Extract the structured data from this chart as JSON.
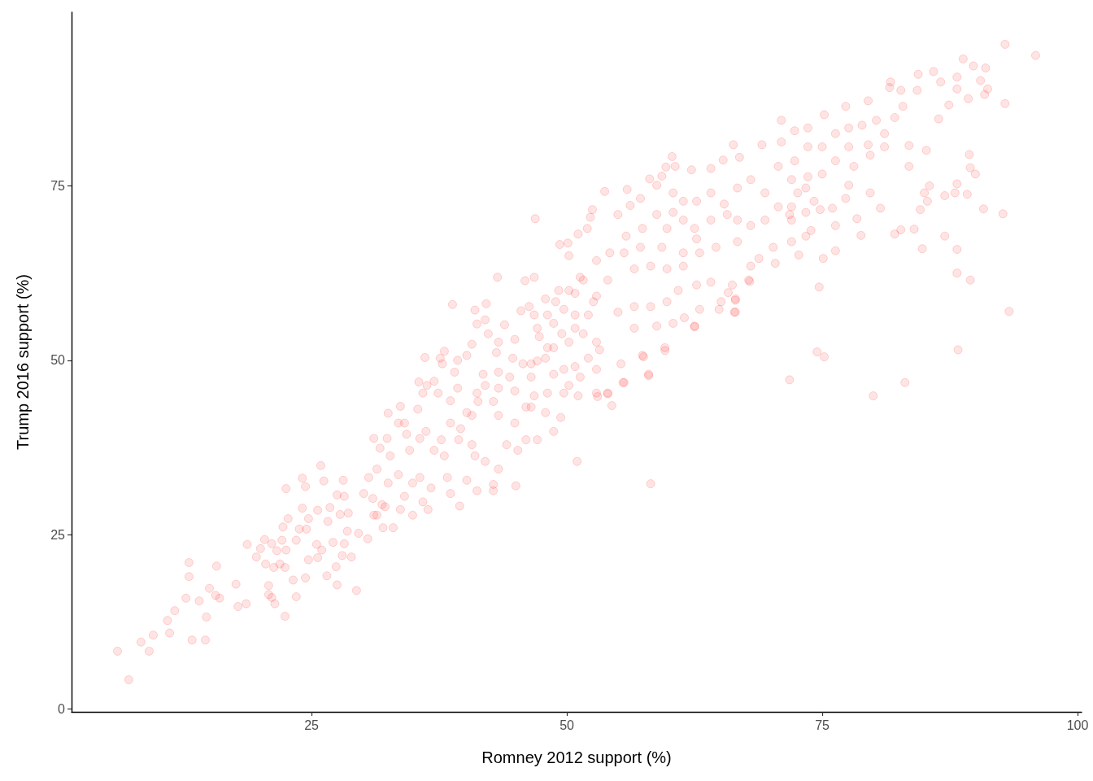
{
  "chart_data": {
    "type": "scatter",
    "xlabel": "Romney 2012 support (%)",
    "ylabel": "Trump 2016 support (%)",
    "xlim": [
      1.5,
      100.4
    ],
    "ylim": [
      -0.4,
      99.9
    ],
    "xticks": [
      25,
      50,
      75,
      100
    ],
    "yticks": [
      0,
      25,
      50,
      75
    ],
    "marker": "circle",
    "series": [
      {
        "color": "#ff0000",
        "x": [
          6.0,
          7.1,
          8.3,
          9.1,
          9.5,
          10.9,
          11.1,
          11.6,
          12.7,
          13.0,
          13.0,
          13.3,
          14.0,
          14.6,
          14.7,
          15.0,
          15.7,
          15.6,
          16.0,
          17.6,
          17.8,
          18.6,
          18.7,
          19.6,
          20.0,
          20.4,
          20.5,
          20.8,
          20.8,
          21.1,
          21.4,
          21.1,
          21.3,
          21.6,
          21.9,
          22.4,
          22.4,
          22.1,
          22.2,
          22.5,
          22.5,
          22.7,
          23.2,
          23.5,
          23.5,
          23.8,
          24.1,
          24.1,
          24.4,
          24.4,
          24.7,
          24.7,
          24.5,
          25.5,
          25.6,
          25.6,
          25.9,
          26.0,
          26.2,
          26.5,
          26.6,
          26.8,
          27.1,
          27.5,
          27.4,
          27.8,
          28.0,
          28.1,
          28.5,
          28.2,
          28.9,
          28.6,
          29.4,
          29.6,
          30.5,
          30.1,
          31.0,
          32.0,
          33.0,
          33.7,
          31.4,
          32.2,
          31.1,
          32.5,
          33.7,
          32.4,
          31.7,
          33.5,
          35.4,
          35.5,
          36.1,
          37.6,
          38.0,
          37.8,
          38.8,
          37.0,
          36.3,
          35.9,
          37.4,
          38.6,
          39.3,
          39.0,
          40.2,
          39.3,
          40.7,
          41.0,
          41.2,
          42.1,
          43.2,
          42.0,
          40.7,
          41.3,
          40.2,
          39.6,
          39.4,
          38.6,
          37.7,
          38.0,
          37.0,
          36.2,
          35.6,
          34.6,
          34.3,
          34.1,
          32.7,
          31.4,
          30.6,
          28.2,
          35.6,
          34.9,
          36.7,
          38.3,
          39.5,
          38.6,
          40.2,
          41.2,
          42.8,
          42.8,
          45.0,
          43.3,
          42.0,
          41.0,
          40.7,
          44.1,
          45.2,
          46.0,
          47.1,
          48.7,
          49.4,
          47.9,
          46.5,
          44.9,
          43.3,
          42.8,
          41.2,
          42.0,
          43.3,
          44.9,
          46.0,
          46.8,
          48.1,
          49.7,
          51.0,
          50.2,
          51.1,
          51.3,
          52.9,
          52.9,
          52.1,
          50.8,
          49.7,
          48.7,
          47.9,
          46.5,
          45.7,
          44.4,
          43.3,
          41.8,
          43.1,
          44.7,
          44.9,
          43.3,
          42.3,
          43.9,
          45.5,
          46.8,
          46.8,
          45.9,
          47.9,
          48.7,
          47.3,
          48.7,
          50.2,
          50.8,
          49.7,
          50.8,
          52.1,
          52.9,
          52.9,
          49.2,
          51.3,
          27.5,
          32.5,
          33.5,
          34.1,
          35.9,
          36.4,
          34.9,
          31.9,
          31.1,
          46.9,
          49.3,
          50.1,
          50.2,
          51.1,
          52.0,
          52.5,
          52.3,
          53.7,
          55.9,
          55.0,
          56.2,
          58.1,
          59.3,
          59.7,
          60.3,
          60.6,
          58.8,
          57.2,
          62.2,
          64.1,
          65.3,
          66.3,
          66.9,
          69.1,
          71.0,
          73.6,
          64.1,
          65.7,
          62.7,
          61.4,
          59.8,
          58.8,
          57.4,
          55.8,
          54.2,
          52.9,
          51.6,
          50.2,
          48.9,
          48.1,
          47.1,
          46.3,
          54.0,
          52.6,
          50.8,
          49.5,
          48.1,
          47.1,
          46.5,
          51.6,
          53.2,
          55.3,
          58.0,
          55.6,
          54.0,
          59.6,
          57.4,
          56.6,
          58.8,
          60.4,
          62.5,
          61.5,
          63.0,
          64.9,
          66.5,
          65.1,
          66.5,
          66.2,
          67.8,
          68.0,
          68.8,
          70.4,
          70.2,
          72.0,
          73.4,
          72.7,
          71.8,
          64.1,
          62.7,
          60.9,
          59.8,
          58.2,
          56.6,
          55.0,
          61.4,
          59.8,
          58.2,
          56.6,
          55.6,
          57.2,
          59.3,
          61.4,
          63.0,
          64.6,
          66.7,
          68.0,
          66.7,
          69.4,
          70.7,
          72.0,
          73.4,
          72.0,
          69.4,
          70.7,
          68.0,
          66.7,
          65.4,
          62.7,
          61.4,
          60.4,
          64.1,
          62.5,
          60.4,
          72.0,
          73.4,
          92.9,
          95.9,
          92.9,
          91.0,
          88.8,
          89.8,
          91.2,
          90.9,
          89.3,
          88.2,
          87.4,
          85.9,
          84.4,
          81.7,
          82.7,
          86.4,
          83.5,
          85.2,
          83.5,
          89.4,
          89.5,
          90.0,
          88.2,
          88.0,
          89.2,
          87.0,
          85.5,
          85.0,
          85.3,
          84.6,
          80.7,
          90.8,
          92.7,
          84.0,
          82.7,
          82.1,
          87.0,
          78.8,
          84.8,
          88.2,
          88.2,
          89.5,
          76.3,
          75.1,
          74.7,
          78.4,
          79.7,
          76.0,
          73.9,
          74.8,
          75.2,
          77.3,
          79.5,
          81.6,
          84.3,
          86.6,
          88.2,
          72.3,
          73.6,
          71.0,
          72.3,
          75.0,
          76.3,
          77.6,
          78.9,
          80.3,
          82.1,
          82.9,
          81.1,
          79.5,
          77.6,
          76.3,
          75.0,
          73.6,
          78.1,
          79.7,
          81.1,
          77.6,
          77.3,
          74.2,
          72.6,
          71.8,
          76.3,
          93.3,
          74.5,
          75.2,
          88.3,
          83.1,
          80.0,
          58.2,
          58.0,
          62.5,
          66.4,
          66.5,
          67.9,
          65.8,
          59.6,
          57.5,
          55.5,
          54.4,
          54.0,
          53.0,
          90.5
        ],
        "values": [
          8.3,
          4.2,
          9.6,
          8.3,
          10.6,
          12.7,
          10.9,
          14.1,
          15.9,
          19.0,
          21.0,
          9.9,
          15.5,
          9.9,
          13.2,
          17.3,
          20.5,
          16.3,
          15.9,
          17.9,
          14.7,
          15.1,
          23.6,
          21.8,
          23.0,
          24.3,
          20.8,
          17.7,
          16.4,
          16.0,
          15.1,
          23.7,
          20.3,
          22.7,
          20.8,
          20.3,
          13.3,
          24.2,
          26.1,
          31.6,
          22.8,
          27.3,
          18.5,
          24.2,
          16.1,
          25.8,
          33.1,
          28.8,
          31.9,
          18.8,
          21.4,
          27.3,
          25.8,
          23.6,
          21.7,
          28.5,
          34.9,
          22.8,
          32.7,
          19.1,
          26.9,
          28.9,
          23.9,
          17.8,
          20.4,
          27.9,
          22.0,
          32.8,
          25.5,
          23.7,
          21.8,
          28.1,
          17.0,
          25.2,
          24.4,
          30.9,
          30.2,
          26.0,
          26.0,
          28.6,
          27.8,
          29.0,
          38.8,
          42.4,
          43.4,
          38.8,
          37.4,
          41.0,
          43.0,
          46.9,
          50.4,
          50.3,
          51.3,
          49.5,
          58.0,
          47.0,
          46.4,
          45.3,
          45.3,
          44.2,
          46.0,
          48.3,
          50.7,
          50.0,
          52.3,
          57.2,
          55.2,
          58.1,
          61.9,
          55.8,
          42.1,
          44.1,
          42.5,
          40.2,
          38.6,
          41.0,
          38.6,
          36.3,
          37.1,
          39.8,
          38.8,
          37.1,
          39.4,
          41.0,
          36.3,
          34.4,
          33.2,
          30.5,
          33.2,
          32.4,
          31.7,
          33.2,
          29.1,
          30.9,
          32.8,
          31.3,
          32.2,
          31.3,
          32.0,
          34.4,
          35.5,
          36.3,
          37.9,
          37.9,
          37.1,
          38.6,
          38.6,
          39.8,
          41.8,
          42.5,
          43.3,
          41.0,
          42.1,
          44.1,
          45.3,
          46.4,
          46.0,
          45.6,
          43.3,
          44.9,
          45.3,
          45.3,
          35.5,
          46.4,
          44.9,
          47.6,
          45.3,
          48.7,
          50.3,
          49.1,
          48.7,
          48.0,
          50.3,
          49.5,
          49.5,
          47.6,
          48.3,
          48.0,
          51.1,
          50.3,
          53.0,
          52.6,
          53.8,
          55.1,
          57.1,
          56.5,
          61.9,
          61.4,
          58.8,
          55.3,
          53.4,
          51.8,
          52.6,
          54.6,
          57.3,
          59.6,
          56.5,
          52.6,
          59.2,
          60.0,
          61.9,
          30.7,
          32.4,
          33.6,
          30.5,
          29.7,
          28.6,
          27.8,
          29.3,
          27.8,
          70.3,
          66.6,
          66.8,
          65.0,
          68.1,
          68.9,
          71.6,
          70.5,
          74.2,
          74.5,
          70.9,
          72.2,
          76.0,
          76.4,
          77.7,
          79.2,
          77.8,
          75.1,
          73.2,
          77.3,
          77.5,
          78.7,
          80.9,
          79.1,
          80.9,
          81.3,
          80.6,
          74.0,
          70.9,
          67.4,
          70.1,
          68.9,
          70.9,
          68.9,
          67.8,
          65.4,
          64.3,
          61.5,
          60.0,
          58.4,
          56.5,
          54.6,
          57.7,
          61.5,
          58.4,
          56.5,
          53.8,
          51.8,
          49.9,
          47.6,
          53.8,
          51.5,
          49.5,
          48.0,
          46.8,
          45.3,
          51.8,
          50.7,
          54.6,
          54.9,
          55.3,
          54.9,
          56.1,
          57.3,
          57.3,
          56.9,
          58.4,
          58.8,
          60.8,
          61.5,
          63.5,
          64.6,
          63.9,
          66.2,
          67.0,
          67.8,
          65.1,
          47.2,
          61.2,
          60.8,
          60.0,
          58.4,
          57.7,
          57.7,
          56.9,
          63.5,
          63.1,
          63.5,
          63.1,
          65.4,
          66.2,
          66.2,
          65.4,
          65.4,
          66.2,
          67.0,
          69.3,
          70.1,
          70.1,
          72.0,
          72.0,
          74.7,
          75.9,
          74.0,
          77.8,
          75.9,
          74.7,
          72.4,
          72.8,
          72.8,
          71.2,
          70.1,
          68.9,
          74.0,
          70.1,
          71.2,
          95.3,
          93.7,
          86.8,
          91.9,
          93.2,
          92.2,
          88.9,
          88.1,
          87.5,
          88.9,
          86.6,
          91.4,
          91.0,
          89.9,
          88.7,
          84.6,
          80.8,
          80.1,
          77.8,
          79.5,
          77.6,
          76.7,
          75.3,
          74.0,
          73.8,
          73.6,
          75.0,
          74.0,
          72.8,
          71.6,
          71.8,
          71.7,
          71.0,
          68.8,
          68.7,
          68.1,
          67.8,
          67.9,
          66.0,
          65.9,
          62.5,
          61.5,
          65.7,
          64.6,
          60.5,
          70.3,
          74.0,
          71.8,
          68.6,
          71.6,
          85.2,
          86.4,
          87.2,
          89.1,
          88.7,
          89.9,
          90.6,
          82.9,
          83.3,
          84.4,
          78.6,
          80.6,
          82.5,
          83.3,
          83.7,
          84.4,
          84.8,
          86.4,
          82.5,
          80.9,
          80.6,
          78.6,
          76.7,
          76.3,
          77.8,
          79.4,
          80.6,
          75.1,
          73.2,
          72.8,
          74.0,
          70.9,
          69.3,
          57.0,
          51.2,
          50.5,
          51.5,
          46.8,
          44.9,
          32.3,
          47.8,
          54.8,
          56.9,
          58.6,
          61.3,
          59.7,
          51.4,
          50.5,
          46.8,
          43.5,
          45.2,
          44.8,
          90.1
        ]
      }
    ]
  }
}
